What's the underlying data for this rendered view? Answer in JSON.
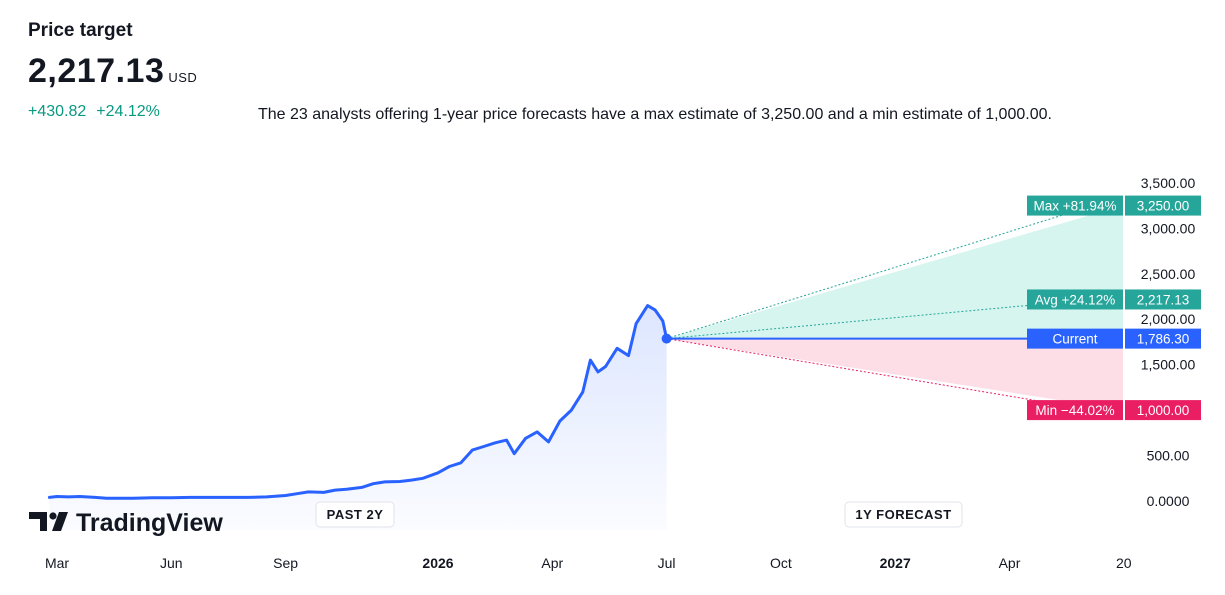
{
  "header": {
    "title": "Price target",
    "price": "2,217.13",
    "currency": "USD",
    "change_abs": "+430.82",
    "change_pct": "+24.12%",
    "description": "The 23 analysts offering 1-year price forecasts have a max estimate of 3,250.00 and a min estimate of 1,000.00."
  },
  "branding": {
    "logo_text": "TradingView"
  },
  "colors": {
    "line": "#2962ff",
    "max": "#26a69a",
    "avg": "#26a69a",
    "current": "#2962ff",
    "min": "#e91e63",
    "up_fill": "#d6f5ef",
    "down_fill": "#fddde6",
    "positive_text": "#089981"
  },
  "chart_data": {
    "type": "line",
    "ylim": [
      -250,
      3600
    ],
    "y_ticks": [
      "3,500.00",
      "3,000.00",
      "2,500.00",
      "2,000.00",
      "1,500.00",
      "500.00",
      "0.0000"
    ],
    "y_tick_values": [
      3500,
      3000,
      2500,
      2000,
      1500,
      500,
      0
    ],
    "x_ticks": [
      {
        "label": "Mar",
        "bold": false
      },
      {
        "label": "Jun",
        "bold": false
      },
      {
        "label": "Sep",
        "bold": false
      },
      {
        "label": "2026",
        "bold": true
      },
      {
        "label": "Apr",
        "bold": false
      },
      {
        "label": "Jul",
        "bold": false
      },
      {
        "label": "Oct",
        "bold": false
      },
      {
        "label": "2027",
        "bold": true
      },
      {
        "label": "Apr",
        "bold": false
      },
      {
        "label": "20",
        "bold": false
      }
    ],
    "x_tick_months": [
      0,
      3,
      6,
      10,
      13,
      16,
      19,
      22,
      25,
      28
    ],
    "period_labels": {
      "past": "PAST 2Y",
      "forecast": "1Y FORECAST"
    },
    "forecast_start_month": 16,
    "forecast_end_month": 28,
    "series": [
      {
        "x": [
          -0.2,
          0,
          0.3,
          0.6,
          1,
          1.3,
          1.6,
          2,
          2.5,
          3,
          3.5,
          4,
          4.5,
          5,
          5.5,
          6,
          6.3,
          6.6,
          7,
          7.3,
          7.6,
          8,
          8.3,
          8.6,
          9,
          9.3,
          9.6,
          10,
          10.3,
          10.6,
          10.9,
          11.2,
          11.5,
          11.8,
          12,
          12.3,
          12.6,
          12.9,
          13.2,
          13.5,
          13.8,
          14,
          14.2,
          14.4,
          14.7,
          15,
          15.2,
          15.5,
          15.7,
          15.9,
          16
        ],
        "y": [
          40,
          50,
          45,
          50,
          40,
          30,
          30,
          30,
          35,
          35,
          40,
          40,
          40,
          40,
          45,
          60,
          80,
          100,
          95,
          120,
          130,
          150,
          190,
          210,
          215,
          230,
          250,
          310,
          380,
          420,
          560,
          600,
          640,
          670,
          520,
          690,
          760,
          650,
          880,
          1000,
          1200,
          1550,
          1420,
          1480,
          1680,
          1600,
          1950,
          2150,
          2100,
          1980,
          1786.3
        ]
      }
    ],
    "forecast": {
      "current": {
        "label": "Current",
        "value": "1,786.30",
        "y": 1786.3
      },
      "max": {
        "label": "Max +81.94%",
        "value": "3,250.00",
        "y": 3250
      },
      "avg": {
        "label": "Avg +24.12%",
        "value": "2,217.13",
        "y": 2217.13
      },
      "min": {
        "label": "Min −44.02%",
        "value": "1,000.00",
        "y": 1000
      }
    }
  }
}
